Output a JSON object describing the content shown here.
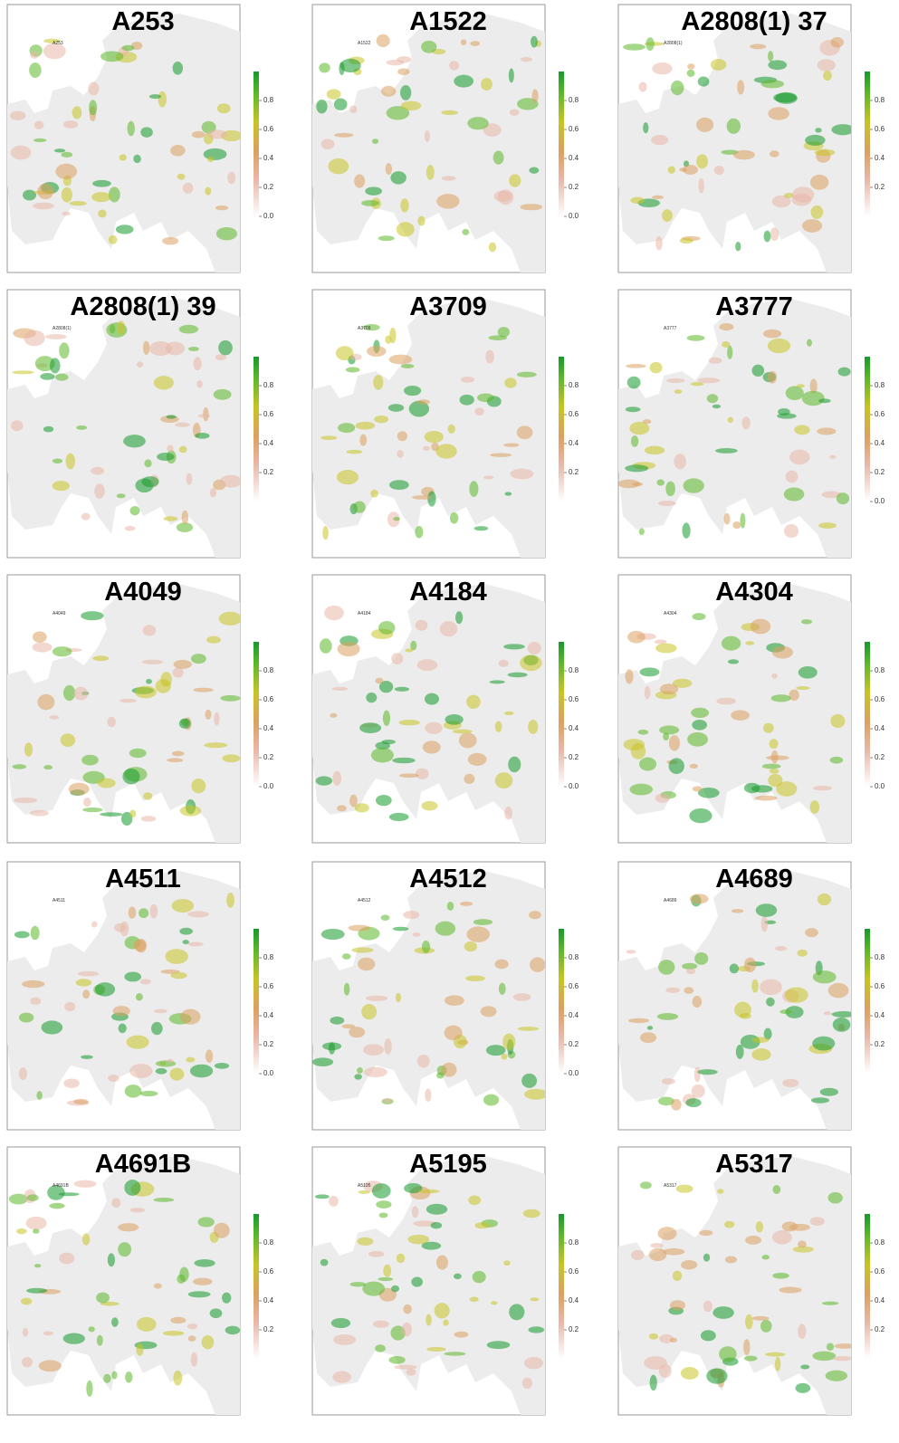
{
  "panels": [
    {
      "title": "A253",
      "subtitle": "A253",
      "colorbar": {
        "range": [
          0,
          1
        ],
        "ticks": [
          0.8,
          0.6,
          0.4,
          0.2,
          {
            "value": 0,
            "label": "0.0"
          }
        ]
      }
    },
    {
      "title": "A1522",
      "subtitle": "A1522",
      "colorbar": {
        "range": [
          0,
          1
        ],
        "ticks": [
          0.8,
          0.6,
          0.4,
          0.2,
          {
            "value": 0,
            "label": "0.0"
          }
        ]
      }
    },
    {
      "title": "A2808(1) 37",
      "subtitle": "A2808(1)",
      "colorbar": {
        "range": [
          0,
          1
        ],
        "ticks": [
          0.8,
          0.6,
          0.4,
          0.2
        ]
      }
    },
    {
      "title": "A2808(1) 39",
      "subtitle": "A2808(1)",
      "colorbar": {
        "range": [
          0,
          1
        ],
        "ticks": [
          0.8,
          0.6,
          0.4,
          0.2
        ]
      }
    },
    {
      "title": "A3709",
      "subtitle": "A3709",
      "colorbar": {
        "range": [
          0,
          1
        ],
        "ticks": [
          0.8,
          0.6,
          0.4,
          0.2
        ]
      }
    },
    {
      "title": "A3777",
      "subtitle": "A3777",
      "colorbar": {
        "range": [
          0,
          1
        ],
        "ticks": [
          0.8,
          0.6,
          0.4,
          0.2,
          {
            "value": 0,
            "label": "0.0"
          }
        ]
      }
    },
    {
      "title": "A4049",
      "subtitle": "A4049",
      "colorbar": {
        "range": [
          0,
          1
        ],
        "ticks": [
          0.8,
          0.6,
          0.4,
          0.2,
          {
            "value": 0,
            "label": "0.0"
          }
        ]
      }
    },
    {
      "title": "A4184",
      "subtitle": "A4184",
      "colorbar": {
        "range": [
          0,
          1
        ],
        "ticks": [
          0.8,
          0.6,
          0.4,
          0.2,
          {
            "value": 0,
            "label": "0.0"
          }
        ]
      }
    },
    {
      "title": "A4304",
      "subtitle": "A4304",
      "colorbar": {
        "range": [
          0,
          1
        ],
        "ticks": [
          0.8,
          0.6,
          0.4,
          0.2,
          {
            "value": 0,
            "label": "0.0"
          }
        ]
      }
    },
    {
      "title": "A4511",
      "subtitle": "A4511",
      "colorbar": {
        "range": [
          0,
          1
        ],
        "ticks": [
          0.8,
          0.6,
          0.4,
          0.2,
          {
            "value": 0,
            "label": "0.0"
          }
        ]
      }
    },
    {
      "title": "A4512",
      "subtitle": "A4512",
      "colorbar": {
        "range": [
          0,
          1
        ],
        "ticks": [
          0.8,
          0.6,
          0.4,
          0.2,
          {
            "value": 0,
            "label": "0.0"
          }
        ]
      }
    },
    {
      "title": "A4689",
      "subtitle": "A4689",
      "colorbar": {
        "range": [
          0,
          1
        ],
        "ticks": [
          0.8,
          0.6,
          0.4,
          0.2
        ]
      }
    },
    {
      "title": "A4691B",
      "subtitle": "A4691B",
      "colorbar": {
        "range": [
          0,
          1
        ],
        "ticks": [
          0.8,
          0.6,
          0.4,
          0.2
        ]
      }
    },
    {
      "title": "A5195",
      "subtitle": "A5195",
      "colorbar": {
        "range": [
          0,
          1
        ],
        "ticks": [
          0.8,
          0.6,
          0.4,
          0.2
        ]
      }
    },
    {
      "title": "A5317",
      "subtitle": "A5317",
      "colorbar": {
        "range": [
          0,
          1
        ],
        "ticks": [
          0.8,
          0.6,
          0.4,
          0.2
        ]
      }
    }
  ]
}
